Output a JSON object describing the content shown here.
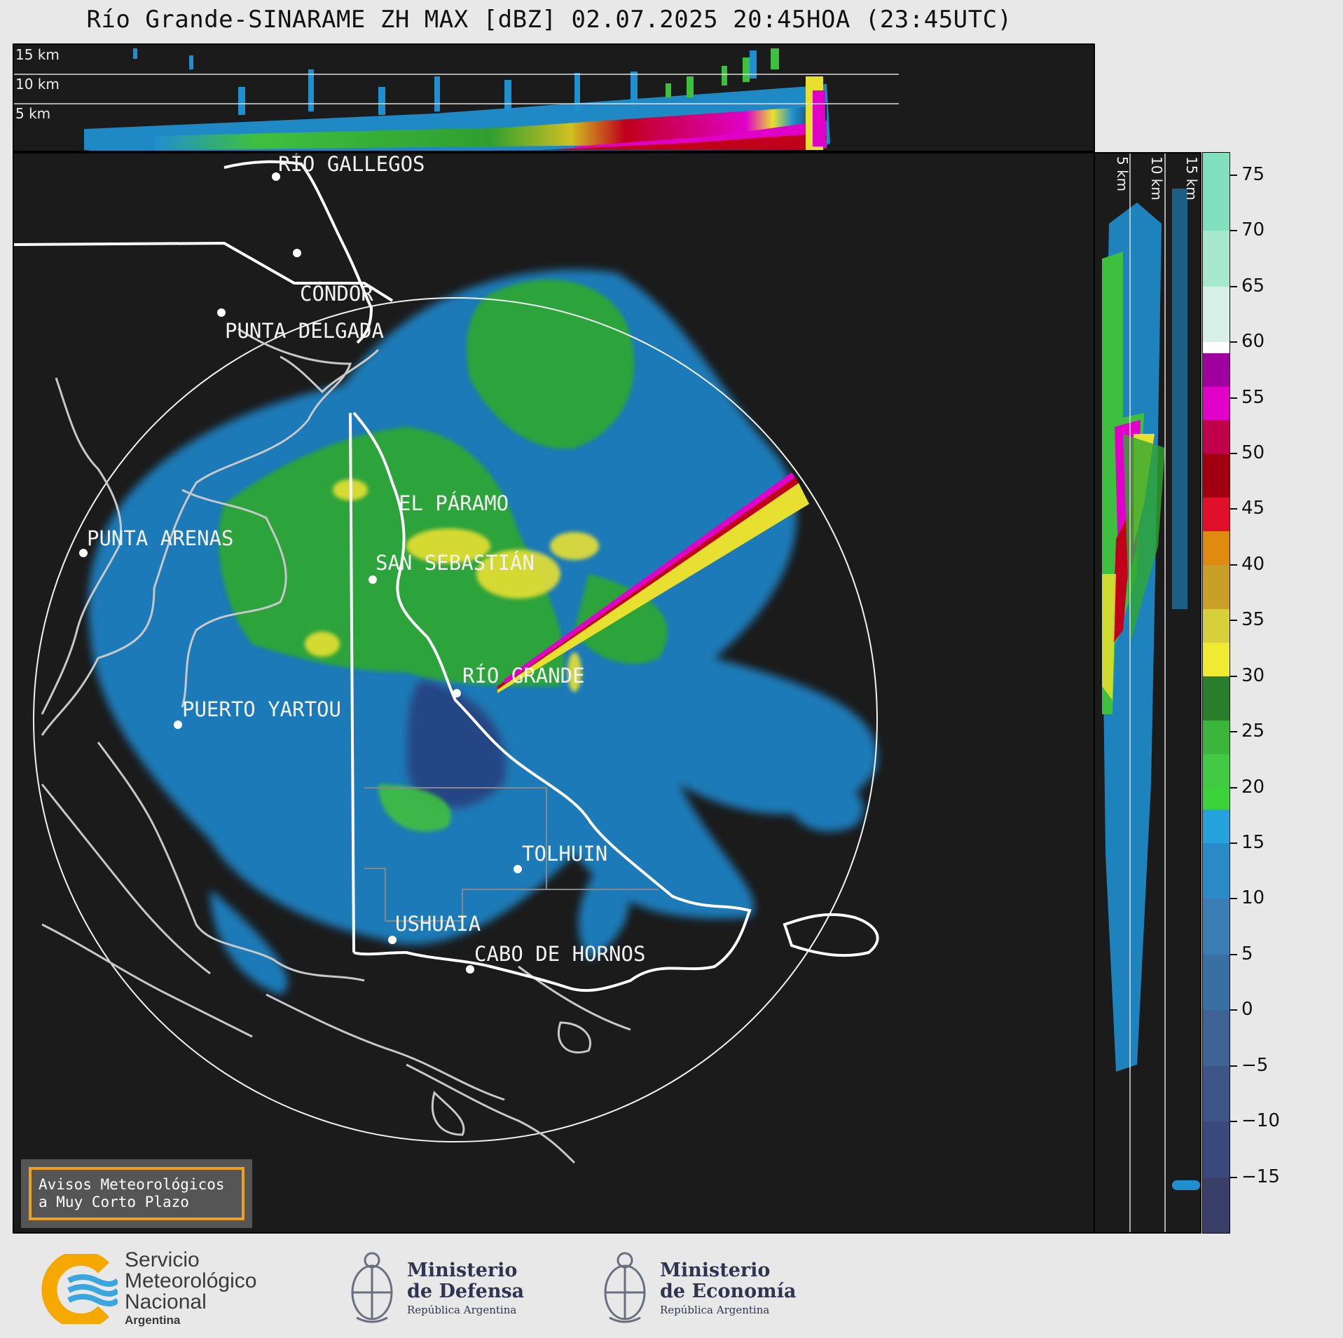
{
  "title": "Río Grande-SINARAME ZH MAX [dBZ] 02.07.2025 20:45HOA (23:45UTC)",
  "top_panel": {
    "altitude_labels": [
      "15 km",
      "10 km",
      "5 km"
    ]
  },
  "side_panel": {
    "altitude_labels": [
      "5 km",
      "10 km",
      "15 km"
    ]
  },
  "cities": [
    {
      "name": "RÍO GALLEGOS"
    },
    {
      "name": "CÓNDOR"
    },
    {
      "name": "PUNTA DELGADA"
    },
    {
      "name": "PUNTA ARENAS"
    },
    {
      "name": "EL PÁRAMO"
    },
    {
      "name": "SAN SEBASTIÁN"
    },
    {
      "name": "RÍO GRANDE"
    },
    {
      "name": "PUERTO YARTOU"
    },
    {
      "name": "TOLHUIN"
    },
    {
      "name": "USHUAIA"
    },
    {
      "name": "CABO DE HORNOS"
    }
  ],
  "alerts_badge": {
    "line1": "Avisos Meteorológicos",
    "line2": "a Muy Corto Plazo"
  },
  "colorbar": {
    "unit": "dBZ",
    "min": -20,
    "max": 77,
    "ticks": [
      "75",
      "70",
      "65",
      "60",
      "55",
      "50",
      "45",
      "40",
      "35",
      "30",
      "25",
      "20",
      "15",
      "10",
      "5",
      "0",
      "−5",
      "−10",
      "−15"
    ],
    "colors": {
      "blue": "#1f8fcf",
      "green": "#3fbf3f",
      "yellow": "#e8e030",
      "orange": "#e08a10",
      "red": "#c0001a",
      "magenta": "#e000c8",
      "aqua": "#80e0c0"
    }
  },
  "footer": {
    "smn": {
      "line1": "Servicio",
      "line2": "Meteorológico",
      "line3": "Nacional",
      "line4": "Argentina"
    },
    "defensa": {
      "line1": "Ministerio",
      "line2": "de Defensa",
      "line3": "República Argentina"
    },
    "economia": {
      "line1": "Ministerio",
      "line2": "de Economía",
      "line3": "República Argentina"
    }
  }
}
